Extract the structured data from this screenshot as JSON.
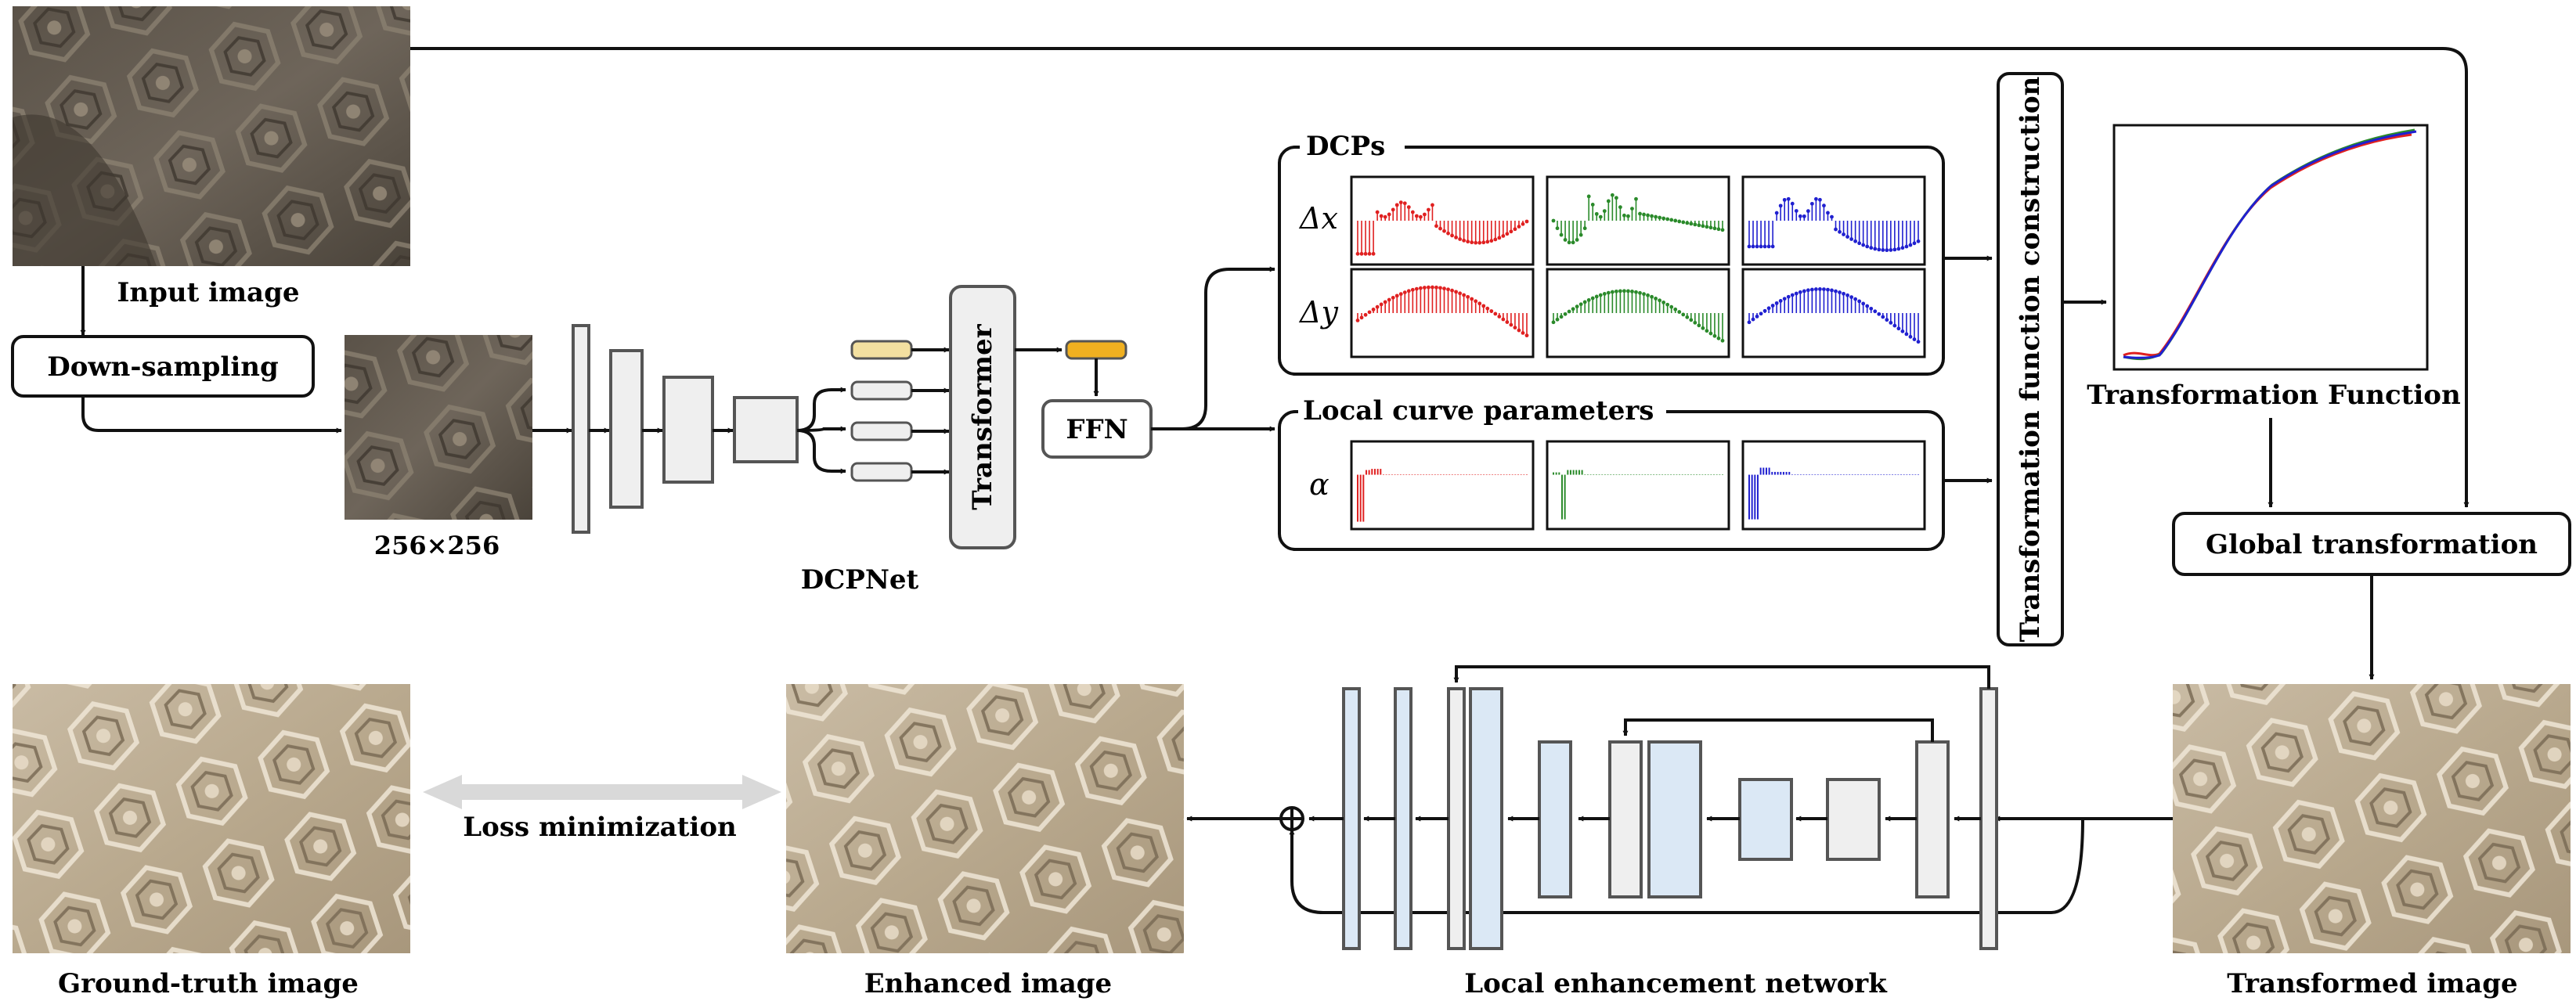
{
  "labels": {
    "input_image": "Input image",
    "down_sampling": "Down-sampling",
    "size": "256×256",
    "dcpnet": "DCPNet",
    "transformer": "Transformer",
    "ffn": "FFN",
    "dcps": "DCPs",
    "delta_x": "Δx",
    "delta_y": "Δy",
    "local_curve_parameters": "Local curve parameters",
    "alpha": "α",
    "transformation_function_construction": "Transformation function construction",
    "transformation_function": "Transformation Function",
    "global_transformation": "Global transformation",
    "transformed_image": "Transformed image",
    "local_enhancement_network": "Local enhancement network",
    "enhanced_image": "Enhanced image",
    "loss_minimization": "Loss minimization",
    "ground_truth_image": "Ground-truth image"
  },
  "colors": {
    "red": "#e02020",
    "green": "#2a8a2a",
    "blue": "#2020d0",
    "token_highlight": "#f3e0a0",
    "ffn_token": "#f0b020",
    "light_blue_block": "#dbe8f5",
    "gray_block": "#efefef",
    "arrow_gray": "#d9d9d9"
  },
  "icons": {
    "add": "circled-plus-icon"
  }
}
